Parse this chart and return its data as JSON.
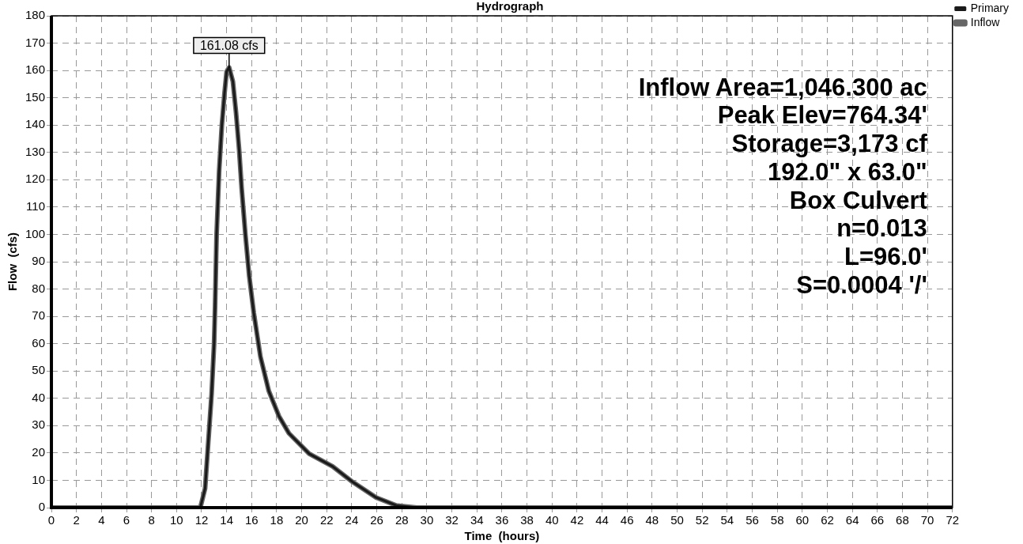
{
  "chart_data": {
    "type": "line",
    "title": "Hydrograph",
    "xlabel": "Time  (hours)",
    "ylabel": "Flow  (cfs)",
    "x": [
      0,
      11.9,
      12.28,
      12.55,
      12.8,
      13.0,
      13.08,
      13.2,
      13.4,
      13.62,
      13.83,
      14.0,
      14.2,
      14.5,
      14.75,
      15.0,
      15.2,
      15.5,
      15.8,
      16.17,
      16.7,
      17.37,
      18.18,
      18.98,
      20.6,
      22.47,
      24.07,
      25.95,
      27.56,
      29.2,
      72
    ],
    "series": [
      {
        "name": "Inflow",
        "color": "#666666",
        "values": [
          0,
          0,
          7,
          25,
          41.5,
          60,
          74,
          100,
          123,
          140,
          151.6,
          159.6,
          161.08,
          156,
          144.7,
          131,
          117,
          100,
          85,
          71.3,
          55.3,
          42.7,
          33.5,
          27.2,
          19.7,
          15.1,
          9.4,
          3.7,
          0.8,
          0,
          0
        ]
      },
      {
        "name": "Primary",
        "color": "#1a1a1a",
        "values": [
          0,
          0,
          7,
          25,
          41.5,
          60,
          74,
          100,
          123,
          140,
          151.6,
          159.6,
          161.08,
          156,
          144.7,
          131,
          117,
          100,
          85,
          71.3,
          55.3,
          42.7,
          33.5,
          27.2,
          19.7,
          15.1,
          9.4,
          3.7,
          0.8,
          0,
          0
        ]
      }
    ],
    "xlim": [
      0,
      72
    ],
    "xticks": [
      0,
      2,
      4,
      6,
      8,
      10,
      12,
      14,
      16,
      18,
      20,
      22,
      24,
      26,
      28,
      30,
      32,
      34,
      36,
      38,
      40,
      42,
      44,
      46,
      48,
      50,
      52,
      54,
      56,
      58,
      60,
      62,
      64,
      66,
      68,
      70,
      72
    ],
    "ylim": [
      0,
      180
    ],
    "yticks": [
      0,
      10,
      20,
      30,
      40,
      50,
      60,
      70,
      80,
      90,
      100,
      110,
      120,
      130,
      140,
      150,
      160,
      170,
      180
    ],
    "grid": true,
    "legend": "top right",
    "marker": "none",
    "line_style": "solid",
    "annotations": [
      {
        "text": "161.08 cfs",
        "x": 14.2,
        "y": 161.08
      },
      "Inflow Area=1,046.300 ac",
      "Peak Elev=764.34'",
      "Storage=3,173 cf",
      "192.0\" x 63.0\"",
      "Box Culvert",
      "n=0.013",
      "L=96.0'",
      "S=0.0004 '/'"
    ]
  }
}
